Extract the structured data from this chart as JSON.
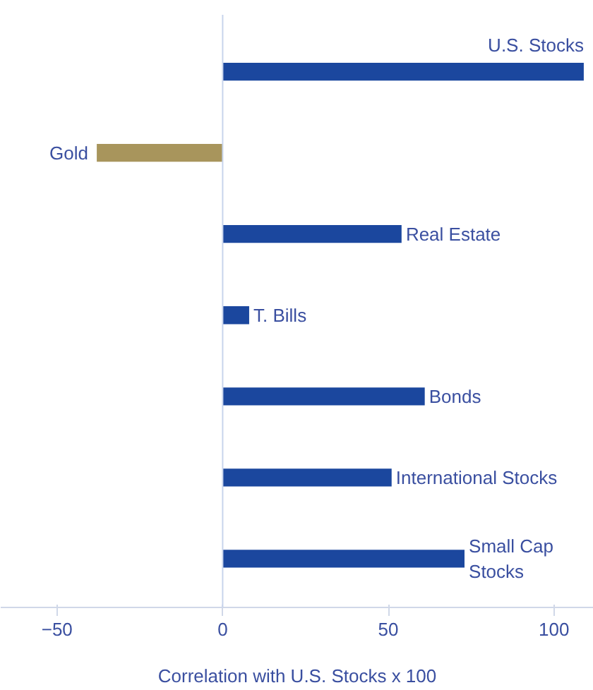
{
  "chart_data": {
    "type": "bar",
    "orientation": "horizontal",
    "xlabel": "Correlation with U.S. Stocks x 100",
    "categories": [
      "U.S. Stocks",
      "Gold",
      "Real Estate",
      "T. Bills",
      "Bonds",
      "International Stocks",
      "Small Cap Stocks"
    ],
    "values": [
      109,
      -38,
      54,
      8,
      61,
      51,
      73
    ],
    "colors": [
      "#1b479e",
      "#a8955c",
      "#1b479e",
      "#1b479e",
      "#1b479e",
      "#1b479e",
      "#1b479e"
    ],
    "xlim": [
      -67,
      112
    ],
    "xticks": [
      -50,
      0,
      50,
      100
    ]
  }
}
